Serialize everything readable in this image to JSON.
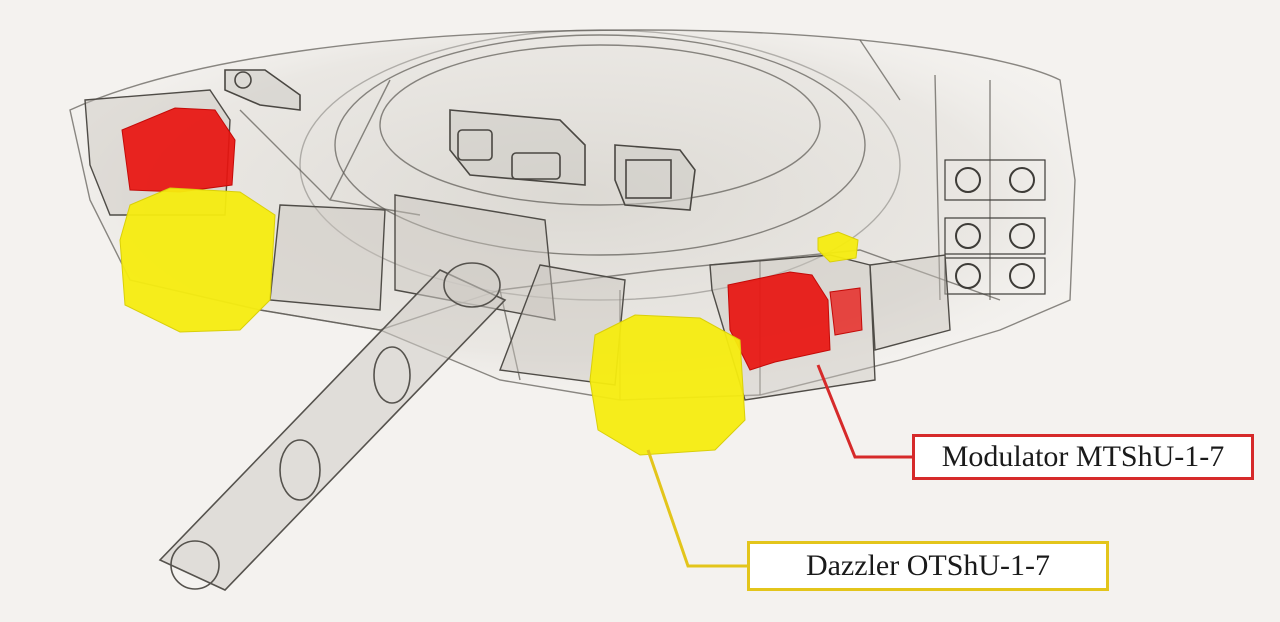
{
  "diagram": {
    "components": [
      {
        "id": "modulator",
        "label": "Modulator MTShU-1-7",
        "color": "#e8130f"
      },
      {
        "id": "dazzler",
        "label": "Dazzler OTShU-1-7",
        "color": "#f5ec0f"
      }
    ],
    "callout_border_colors": {
      "modulator": "#d62a2a",
      "dazzler": "#e3c51b"
    }
  }
}
